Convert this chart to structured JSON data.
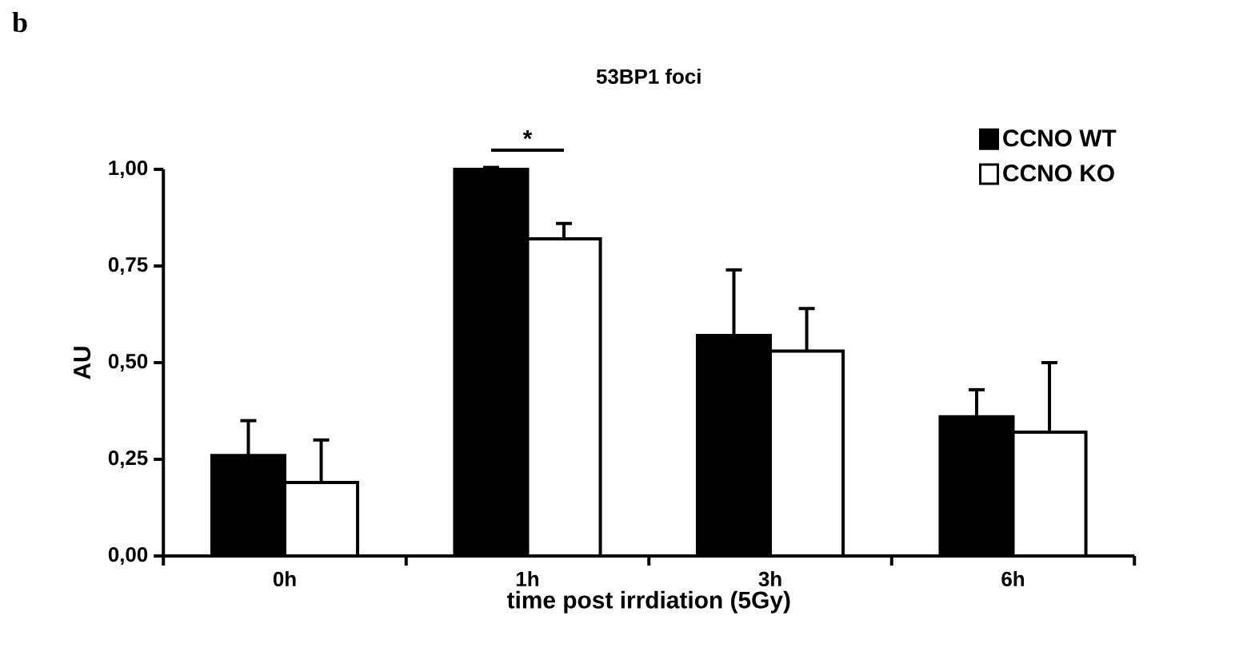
{
  "chart_data": {
    "type": "bar",
    "title": "53BP1 foci",
    "xlabel": "time post irrdiation (5Gy)",
    "ylabel": "AU",
    "categories": [
      "0h",
      "1h",
      "3h",
      "6h"
    ],
    "series": [
      {
        "name": "CCNO WT",
        "color": "#000000",
        "values": [
          0.26,
          1.0,
          0.57,
          0.36
        ],
        "errors": [
          [
            0.26,
            0.35
          ],
          [
            1.0,
            1.005
          ],
          [
            0.57,
            0.74
          ],
          [
            0.36,
            0.43
          ]
        ]
      },
      {
        "name": "CCNO KO",
        "color": "#ffffff",
        "values": [
          0.19,
          0.82,
          0.53,
          0.32
        ],
        "errors": [
          [
            0.19,
            0.3
          ],
          [
            0.82,
            0.86
          ],
          [
            0.53,
            0.64
          ],
          [
            0.32,
            0.5
          ]
        ]
      }
    ],
    "ylim": [
      0,
      1
    ],
    "yticks": [
      {
        "value": 0,
        "label": "0,00"
      },
      {
        "value": 0.25,
        "label": "0,25"
      },
      {
        "value": 0.5,
        "label": "0,50"
      },
      {
        "value": 0.75,
        "label": "0,75"
      },
      {
        "value": 1,
        "label": "1,00"
      }
    ],
    "legend": "top right",
    "annotations": [
      "b",
      "*"
    ]
  }
}
